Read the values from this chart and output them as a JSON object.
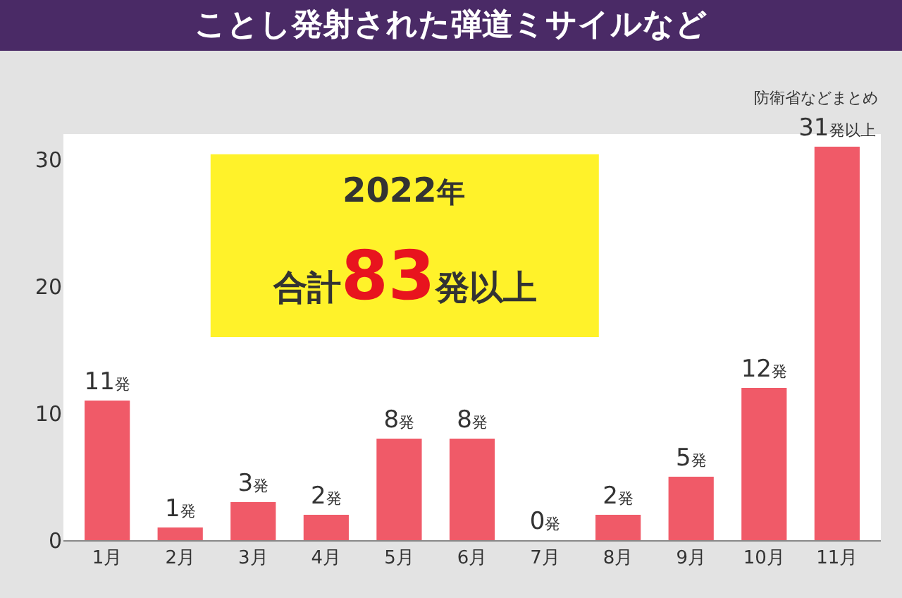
{
  "chart_data": {
    "type": "bar",
    "title": "ことし発射された弾道ミサイルなど",
    "categories": [
      "1月",
      "2月",
      "3月",
      "4月",
      "5月",
      "6月",
      "7月",
      "8月",
      "9月",
      "10月",
      "11月"
    ],
    "values": [
      11,
      1,
      3,
      2,
      8,
      8,
      0,
      2,
      5,
      12,
      31
    ],
    "value_labels": [
      "11発",
      "1発",
      "3発",
      "2発",
      "8発",
      "8発",
      "0発",
      "2発",
      "5発",
      "12発",
      "31発以上"
    ],
    "color": "#f05a68",
    "ylim": [
      0,
      32
    ],
    "yticks": [
      0,
      10,
      20,
      30
    ],
    "annotations": [
      "2022年",
      "合計83発以上",
      "防衛省などまとめ"
    ]
  }
}
